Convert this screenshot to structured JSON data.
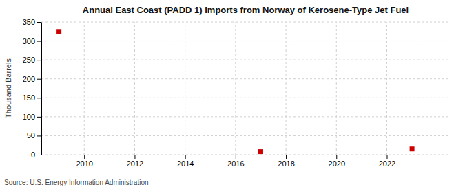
{
  "chart_data": {
    "type": "scatter",
    "title": "Annual East Coast (PADD 1) Imports from Norway of Kerosene-Type Jet Fuel",
    "ylabel": "Thousand Barrels",
    "annotations": [
      "Source: U.S. Energy Information Administration"
    ],
    "x": [
      2009,
      2017,
      2023
    ],
    "values": [
      325,
      8,
      15
    ],
    "color": "#cc0000",
    "marker": "square",
    "xlim": [
      2008.3,
      2024.5
    ],
    "ylim": [
      0,
      350
    ],
    "xticks": [
      2010,
      2012,
      2014,
      2016,
      2018,
      2020,
      2022
    ],
    "yticks": [
      0,
      50,
      100,
      150,
      200,
      250,
      300,
      350
    ],
    "grid": true
  }
}
